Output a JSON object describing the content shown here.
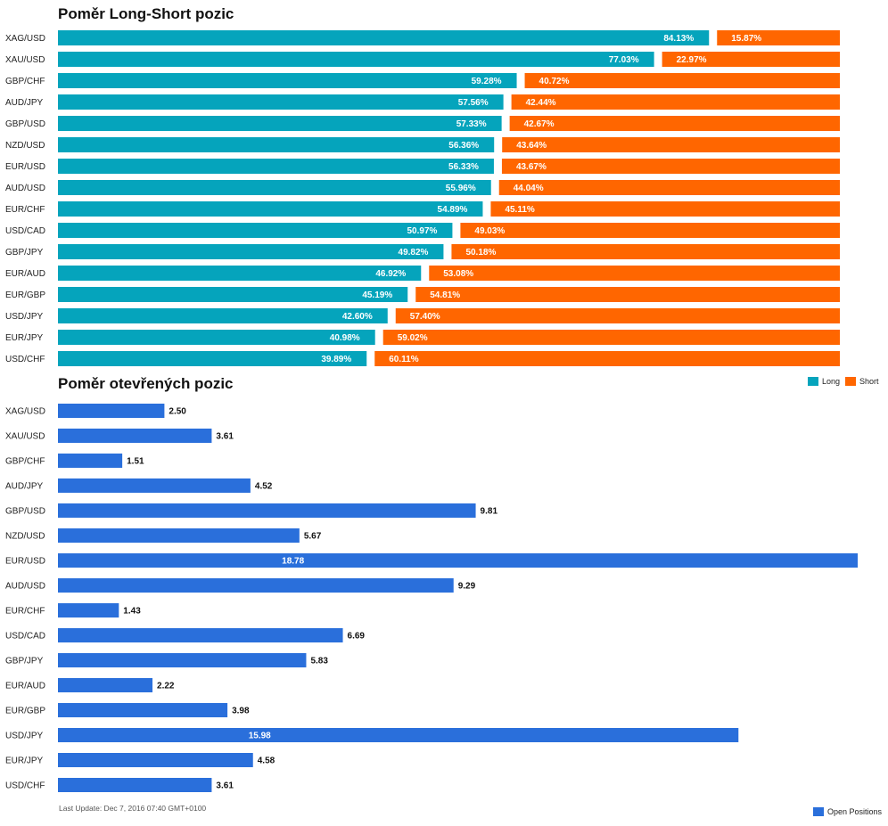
{
  "chart_data": [
    {
      "type": "bar",
      "orientation": "horizontal",
      "stacked": true,
      "title": "Poměr Long-Short pozic",
      "categories": [
        "XAG/USD",
        "XAU/USD",
        "GBP/CHF",
        "AUD/JPY",
        "GBP/USD",
        "NZD/USD",
        "EUR/USD",
        "AUD/USD",
        "EUR/CHF",
        "USD/CAD",
        "GBP/JPY",
        "EUR/AUD",
        "EUR/GBP",
        "USD/JPY",
        "EUR/JPY",
        "USD/CHF"
      ],
      "series": [
        {
          "name": "Long",
          "color": "#05a4bc",
          "values": [
            84.13,
            77.03,
            59.28,
            57.56,
            57.33,
            56.36,
            56.33,
            55.96,
            54.89,
            50.97,
            49.82,
            46.92,
            45.19,
            42.6,
            40.98,
            39.89
          ],
          "labels": [
            "84.13%",
            "77.03%",
            "59.28%",
            "57.56%",
            "57.33%",
            "56.36%",
            "56.33%",
            "55.96%",
            "54.89%",
            "50.97%",
            "49.82%",
            "46.92%",
            "45.19%",
            "42.60%",
            "40.98%",
            "39.89%"
          ]
        },
        {
          "name": "Short",
          "color": "#ff6600",
          "values": [
            15.87,
            22.97,
            40.72,
            42.44,
            42.67,
            43.64,
            43.67,
            44.04,
            45.11,
            49.03,
            50.18,
            53.08,
            54.81,
            57.4,
            59.02,
            60.11
          ],
          "labels": [
            "15.87%",
            "22.97%",
            "40.72%",
            "42.44%",
            "42.67%",
            "43.64%",
            "43.67%",
            "44.04%",
            "45.11%",
            "49.03%",
            "50.18%",
            "53.08%",
            "54.81%",
            "57.40%",
            "59.02%",
            "60.11%"
          ]
        }
      ],
      "legend_placement": "bottom-right",
      "grid": false
    },
    {
      "type": "bar",
      "orientation": "horizontal",
      "title": "Poměr otevřených pozic",
      "categories": [
        "XAG/USD",
        "XAU/USD",
        "GBP/CHF",
        "AUD/JPY",
        "GBP/USD",
        "NZD/USD",
        "EUR/USD",
        "AUD/USD",
        "EUR/CHF",
        "USD/CAD",
        "GBP/JPY",
        "EUR/AUD",
        "EUR/GBP",
        "USD/JPY",
        "EUR/JPY",
        "USD/CHF"
      ],
      "series": [
        {
          "name": "Open Positions",
          "color": "#2a6fdb",
          "values": [
            2.5,
            3.61,
            1.51,
            4.52,
            9.81,
            5.67,
            18.78,
            9.29,
            1.43,
            6.69,
            5.83,
            2.22,
            3.98,
            15.98,
            4.58,
            3.61
          ],
          "labels": [
            "2.50",
            "3.61",
            "1.51",
            "4.52",
            "9.81",
            "5.67",
            "18.78",
            "9.29",
            "1.43",
            "6.69",
            "5.83",
            "2.22",
            "3.98",
            "15.98",
            "4.58",
            "3.61"
          ]
        }
      ],
      "legend_placement": "bottom-right",
      "grid": false
    }
  ],
  "footer": {
    "last_update": "Last Update: Dec 7, 2016 07:40 GMT+0100"
  }
}
